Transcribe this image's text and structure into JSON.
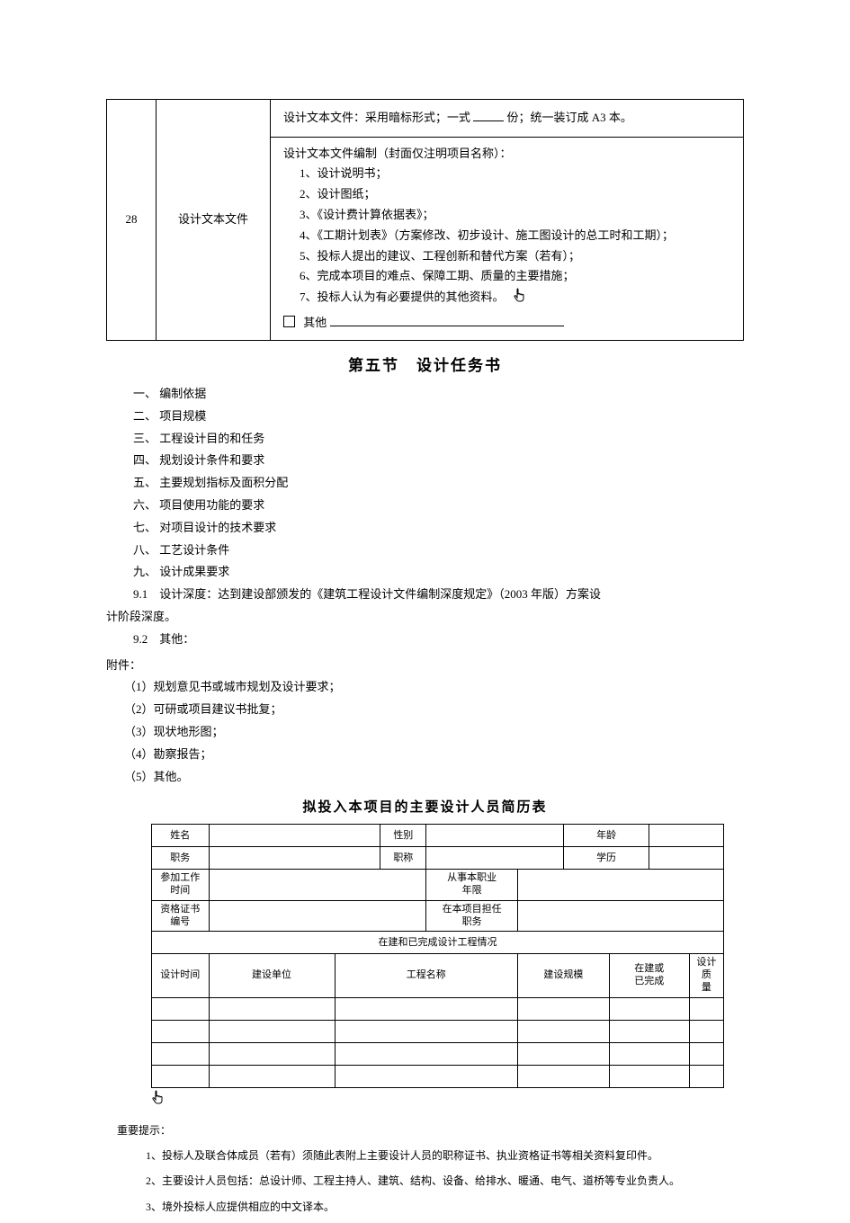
{
  "top_table": {
    "row_num": "28",
    "row_label": "设计文本文件",
    "row1": {
      "prefix": "设计文本文件：采用暗标形式；一式",
      "suffix": "份；统一装订成 A3 本。"
    },
    "row2": {
      "lead": "设计文本文件编制（封面仅注明项目名称）：",
      "items": [
        "1、设计说明书；",
        "2、设计图纸；",
        "3、《设计费计算依据表》；",
        "4、《工期计划表》（方案修改、初步设计、施工图设计的总工时和工期）；",
        "5、投标人提出的建议、工程创新和替代方案（若有）；",
        "6、完成本项目的难点、保障工期、质量的主要措施；",
        "7、投标人认为有必要提供的其他资料。"
      ],
      "other_label": "其他"
    }
  },
  "section_title": "第五节　设计任务书",
  "outline": [
    "一、 编制依据",
    "二、 项目规模",
    "三、 工程设计目的和任务",
    "四、 规划设计条件和要求",
    "五、 主要规划指标及面积分配",
    "六、 项目使用功能的要求",
    "七、 对项目设计的技术要求",
    "八、 工艺设计条件",
    "九、 设计成果要求"
  ],
  "para_91": "9.1　设计深度：达到建设部颁发的《建筑工程设计文件编制深度规定》（2003 年版）方案设",
  "para_91b": "计阶段深度。",
  "para_92": "9.2　其他：",
  "attach_head": "附件：",
  "attach_list": [
    "（1）规划意见书或城市规划及设计要求；",
    "（2）可研或项目建议书批复；",
    "（3）现状地形图；",
    "（4）勘察报告；",
    "（5）其他。"
  ],
  "personnel_title": "拟投入本项目的主要设计人员简历表",
  "pt": {
    "r1c1": "姓名",
    "r1c3": "性别",
    "r1c5": "年龄",
    "r2c1": "职务",
    "r2c3": "职称",
    "r2c5": "学历",
    "r3c1": "参加工作\n时间",
    "r3c3": "从事本职业\n年限",
    "r4c1": "资格证书\n编号",
    "r4c3": "在本项目担任\n职务",
    "sect": "在建和已完成设计工程情况",
    "h1": "设计时间",
    "h2": "建设单位",
    "h3": "工程名称",
    "h4": "建设规模",
    "h5": "在建或\n已完成",
    "h6": "设计质\n量"
  },
  "notes_head": "重要提示：",
  "notes": [
    "1、投标人及联合体成员（若有）须随此表附上主要设计人员的职称证书、执业资格证书等相关资料复印件。",
    "2、主要设计人员包括：总设计师、工程主持人、建筑、结构、设备、给排水、暖通、电气、道桥等专业负责人。",
    "3、境外投标人应提供相应的中文译本。"
  ],
  "colors": {
    "text": "#000000",
    "bg": "#ffffff",
    "border": "#000000"
  }
}
